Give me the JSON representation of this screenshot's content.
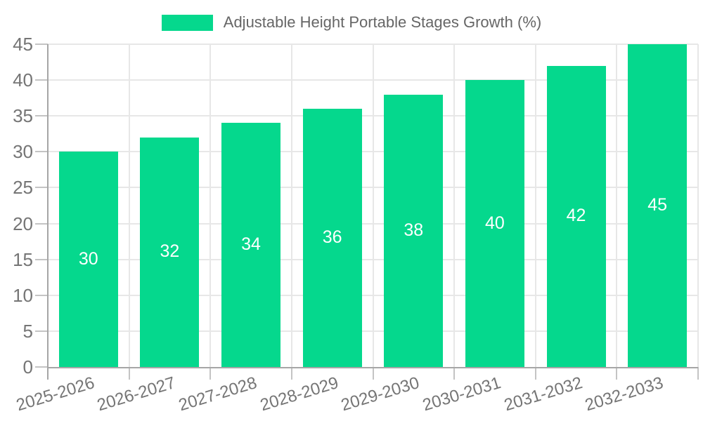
{
  "legend": {
    "label": "Adjustable Height Portable Stages Growth (%)"
  },
  "chart_data": {
    "type": "bar",
    "title": "Adjustable Height Portable Stages Growth (%)",
    "categories": [
      "2025-2026",
      "2026-2027",
      "2027-2028",
      "2028-2029",
      "2029-2030",
      "2030-2031",
      "2031-2032",
      "2032-2033"
    ],
    "values": [
      30,
      32,
      34,
      36,
      38,
      40,
      42,
      45
    ],
    "series": [
      {
        "name": "Adjustable Height Portable Stages Growth (%)",
        "values": [
          30,
          32,
          34,
          36,
          38,
          40,
          42,
          45
        ]
      }
    ],
    "xlabel": "",
    "ylabel": "",
    "ylim": [
      0,
      45
    ],
    "ytick_step": 5,
    "yticks": [
      0,
      5,
      10,
      15,
      20,
      25,
      30,
      35,
      40,
      45
    ],
    "grid": true,
    "legend_position": "top",
    "x_tick_rotation_deg": -17,
    "colors": {
      "bar": "#05d88d",
      "value_label": "#ffffff",
      "axis_line": "#a6a6a6",
      "gridline": "#e7e7e7",
      "tick": "#c4c4c4",
      "tick_label": "#757575",
      "legend_text": "#666666"
    }
  }
}
